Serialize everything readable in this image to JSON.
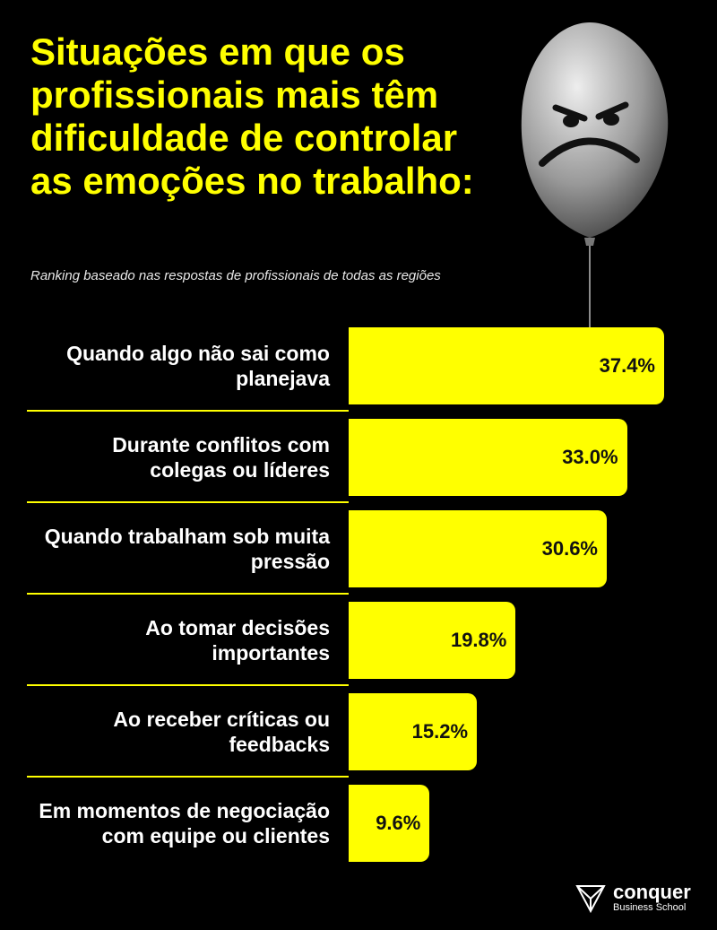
{
  "chart_data": {
    "type": "bar",
    "title": "Situações em que os profissionais mais têm dificuldade de controlar as emoções no trabalho:",
    "subtitle": "Ranking baseado nas respostas de profissionais de todas as regiões",
    "categories": [
      "Quando algo não sai como planejava",
      "Durante conflitos com colegas ou líderes",
      "Quando trabalham sob muita pressão",
      "Ao tomar decisões importantes",
      "Ao receber críticas ou feedbacks",
      "Em momentos de negociação com equipe ou clientes"
    ],
    "values": [
      37.4,
      33.0,
      30.6,
      19.8,
      15.2,
      9.6
    ],
    "value_labels": [
      "37.4%",
      "33.0%",
      "30.6%",
      "19.8%",
      "15.2%",
      "9.6%"
    ],
    "color": "#ffff00"
  },
  "logo": {
    "name": "conquer",
    "tagline": "Business School"
  }
}
